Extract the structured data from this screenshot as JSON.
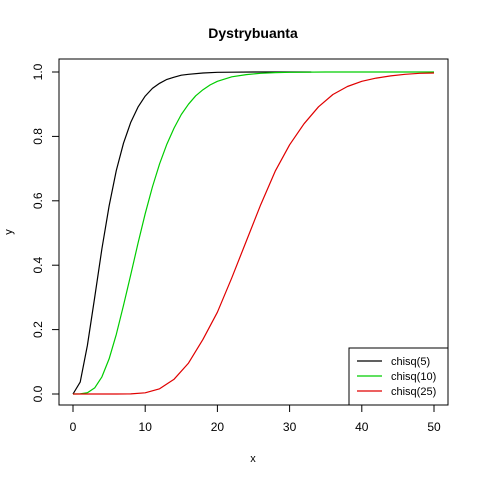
{
  "chart_data": {
    "type": "line",
    "title": "Dystrybuanta",
    "xlabel": "x",
    "ylabel": "y",
    "xlim": [
      0,
      50
    ],
    "ylim": [
      0,
      1
    ],
    "xticks": [
      0,
      10,
      20,
      30,
      40,
      50
    ],
    "xtick_labels": [
      "0",
      "10",
      "20",
      "30",
      "40",
      "50"
    ],
    "yticks": [
      0,
      0.2,
      0.4,
      0.6,
      0.8,
      1.0
    ],
    "ytick_labels": [
      "0.0",
      "0.2",
      "0.4",
      "0.6",
      "0.8",
      "1.0"
    ],
    "grid": false,
    "legend_position": "bottom-right",
    "series": [
      {
        "name": "chisq(5)",
        "color": "#000000",
        "x": [
          0,
          1,
          2,
          3,
          4,
          5,
          6,
          7,
          8,
          9,
          10,
          11,
          12,
          13,
          14,
          15,
          16,
          18,
          20,
          22,
          25,
          28,
          30,
          33
        ],
        "y": [
          0,
          0.037,
          0.151,
          0.3,
          0.451,
          0.584,
          0.694,
          0.779,
          0.844,
          0.891,
          0.925,
          0.949,
          0.965,
          0.977,
          0.984,
          0.99,
          0.993,
          0.997,
          0.999,
          0.9995,
          0.9999,
          1.0,
          1.0,
          1.0
        ]
      },
      {
        "name": "chisq(10)",
        "color": "#00cd00",
        "x": [
          0,
          1,
          2,
          3,
          4,
          5,
          6,
          7,
          8,
          9,
          10,
          11,
          12,
          13,
          14,
          15,
          16,
          17,
          18,
          19,
          20,
          22,
          24,
          26,
          28,
          30,
          35,
          40,
          45,
          50
        ],
        "y": [
          0,
          0.0002,
          0.004,
          0.019,
          0.053,
          0.109,
          0.185,
          0.275,
          0.371,
          0.468,
          0.56,
          0.643,
          0.715,
          0.776,
          0.826,
          0.868,
          0.9,
          0.926,
          0.945,
          0.96,
          0.971,
          0.985,
          0.992,
          0.996,
          0.998,
          0.999,
          1.0,
          1.0,
          1.0,
          1.0
        ]
      },
      {
        "name": "chisq(25)",
        "color": "#e00000",
        "x": [
          0,
          4,
          6,
          8,
          10,
          12,
          14,
          16,
          18,
          20,
          22,
          24,
          26,
          28,
          30,
          32,
          34,
          36,
          38,
          40,
          42,
          44,
          46,
          48,
          50
        ],
        "y": [
          0,
          0.0,
          0.0001,
          0.0003,
          0.0037,
          0.016,
          0.046,
          0.096,
          0.17,
          0.254,
          0.361,
          0.475,
          0.588,
          0.692,
          0.774,
          0.839,
          0.892,
          0.93,
          0.955,
          0.971,
          0.981,
          0.988,
          0.993,
          0.996,
          0.997
        ]
      }
    ]
  }
}
